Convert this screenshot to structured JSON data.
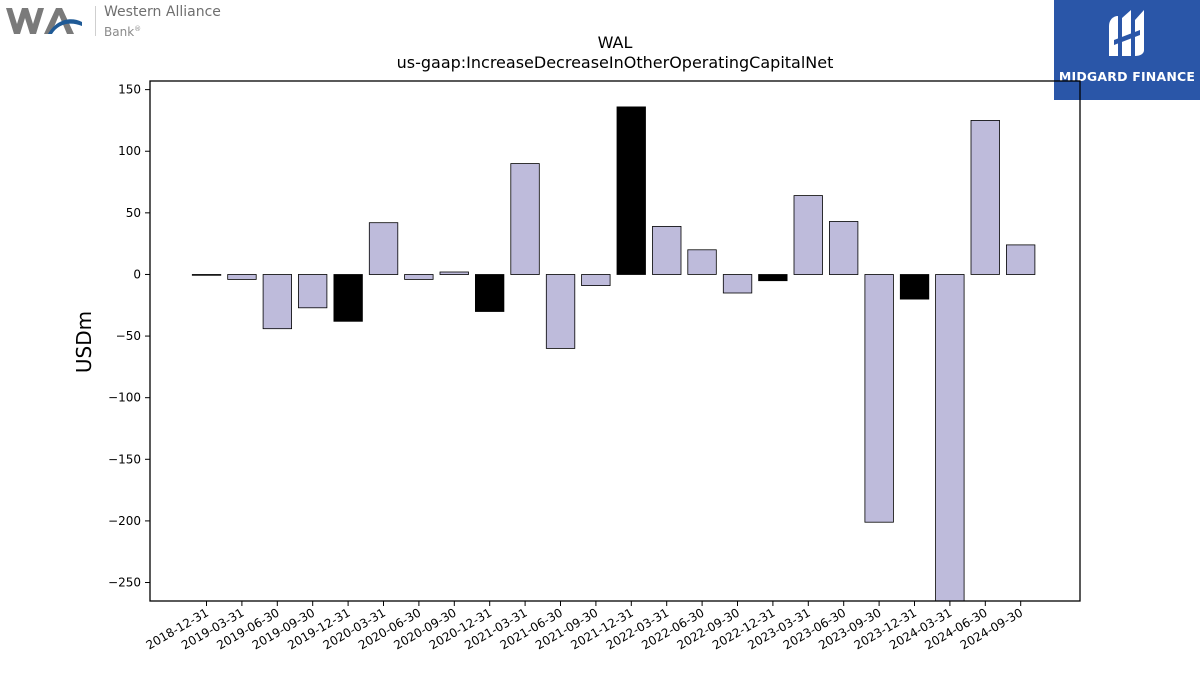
{
  "header": {
    "company_line1": "Western Alliance",
    "company_line2": "Bank",
    "company_mark": "®",
    "logo_icon": "wal-logo-icon",
    "brand": "MIDGARD FINANCE",
    "brand_icon": "midgard-logo-icon",
    "brand_color": "#2a56a8"
  },
  "chart_data": {
    "type": "bar",
    "title": "WAL",
    "subtitle": "us-gaap:IncreaseDecreaseInOtherOperatingCapitalNet",
    "ylabel": "USDm",
    "xlabel": "",
    "ylim": [
      -265,
      157
    ],
    "yticks": [
      150,
      100,
      50,
      0,
      -50,
      -100,
      -150,
      -200,
      -250
    ],
    "grid": false,
    "legend": "none",
    "colors": {
      "quarter": "#bebbdb",
      "year_end": "#000000",
      "edge": "#000000"
    },
    "categories": [
      "2018-12-31",
      "2019-03-31",
      "2019-06-30",
      "2019-09-30",
      "2019-12-31",
      "2020-03-31",
      "2020-06-30",
      "2020-09-30",
      "2020-12-31",
      "2021-03-31",
      "2021-06-30",
      "2021-09-30",
      "2021-12-31",
      "2022-03-31",
      "2022-06-30",
      "2022-09-30",
      "2022-12-31",
      "2023-03-31",
      "2023-06-30",
      "2023-09-30",
      "2023-12-31",
      "2024-03-31",
      "2024-06-30",
      "2024-09-30"
    ],
    "values": [
      -0.5,
      -4,
      -44,
      -27,
      -38,
      42,
      -4,
      2,
      -30,
      90,
      -60,
      -9,
      136,
      39,
      20,
      -15,
      -5,
      64,
      43,
      -201,
      -20,
      -265,
      125,
      24
    ],
    "year_end": [
      false,
      false,
      false,
      false,
      true,
      false,
      false,
      false,
      true,
      false,
      false,
      false,
      true,
      false,
      false,
      false,
      true,
      false,
      false,
      false,
      true,
      false,
      false,
      false
    ]
  }
}
